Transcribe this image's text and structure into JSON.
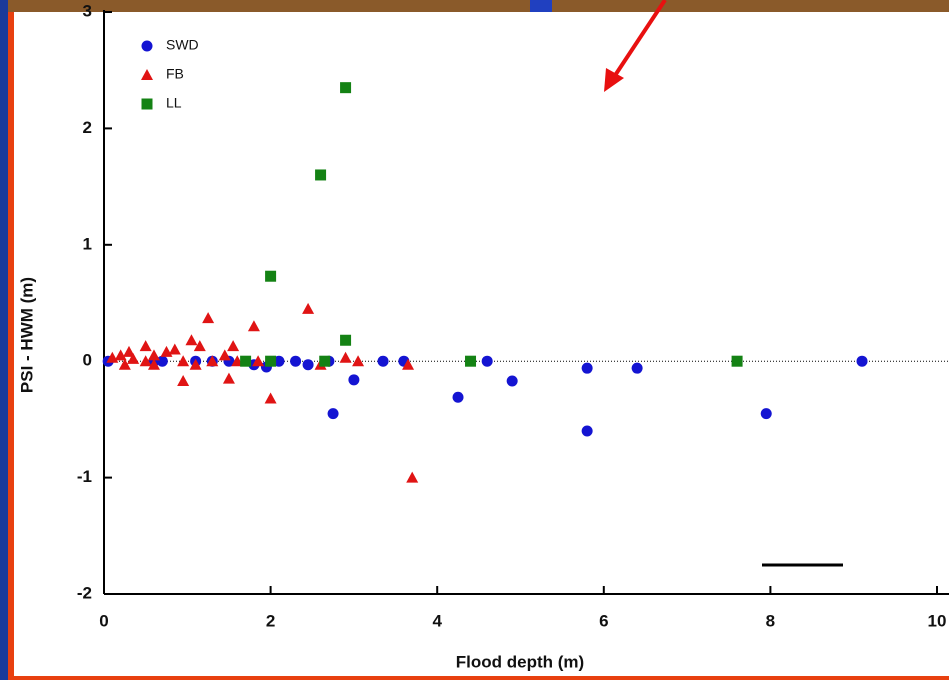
{
  "chart_data": {
    "type": "scatter",
    "x_label": "Flood depth (m)",
    "y_label": "PSI - HWM (m)",
    "xlim": [
      0,
      10
    ],
    "ylim": [
      -2,
      3
    ],
    "xticks": [
      0,
      2,
      4,
      6,
      8,
      10
    ],
    "yticks": [
      -2,
      -1,
      0,
      1,
      2,
      3
    ],
    "series": [
      {
        "name": "SWD",
        "color": "#1414d2",
        "marker": "circle",
        "x": [
          0.05,
          0.6,
          0.7,
          1.1,
          1.3,
          1.5,
          1.8,
          1.95,
          2.1,
          2.3,
          2.45,
          2.7,
          2.75,
          3.0,
          3.35,
          3.6,
          4.25,
          4.6,
          4.9,
          5.8,
          5.8,
          6.4,
          7.95,
          9.1
        ],
        "values": [
          0,
          0,
          0,
          0,
          0,
          0,
          -0.03,
          -0.05,
          0,
          0,
          -0.03,
          0,
          -0.45,
          -0.16,
          0,
          0,
          -0.31,
          0,
          -0.17,
          -0.06,
          -0.6,
          -0.06,
          -0.45,
          0
        ]
      },
      {
        "name": "FB",
        "color": "#e01414",
        "marker": "triangle",
        "x": [
          0.1,
          0.2,
          0.25,
          0.3,
          0.35,
          0.5,
          0.5,
          0.6,
          0.6,
          0.75,
          0.85,
          0.95,
          0.95,
          1.05,
          1.1,
          1.15,
          1.25,
          1.3,
          1.45,
          1.5,
          1.55,
          1.6,
          1.8,
          1.85,
          2.0,
          2.45,
          2.6,
          2.9,
          3.05,
          3.65,
          3.7
        ],
        "values": [
          0.03,
          0.05,
          -0.03,
          0.08,
          0.02,
          0.13,
          0,
          0.05,
          -0.03,
          0.08,
          0.1,
          -0.17,
          0,
          0.18,
          -0.03,
          0.13,
          0.37,
          0,
          0.05,
          -0.15,
          0.13,
          0,
          0.3,
          0,
          -0.32,
          0.45,
          -0.03,
          0.03,
          0,
          -0.03,
          -1.0
        ]
      },
      {
        "name": "LL",
        "color": "#148214",
        "marker": "square",
        "x": [
          1.7,
          2.0,
          2.0,
          2.6,
          2.65,
          2.9,
          2.9,
          4.4,
          7.6
        ],
        "values": [
          0,
          0.73,
          0,
          1.6,
          0,
          0.18,
          2.35,
          0,
          0
        ]
      }
    ]
  }
}
